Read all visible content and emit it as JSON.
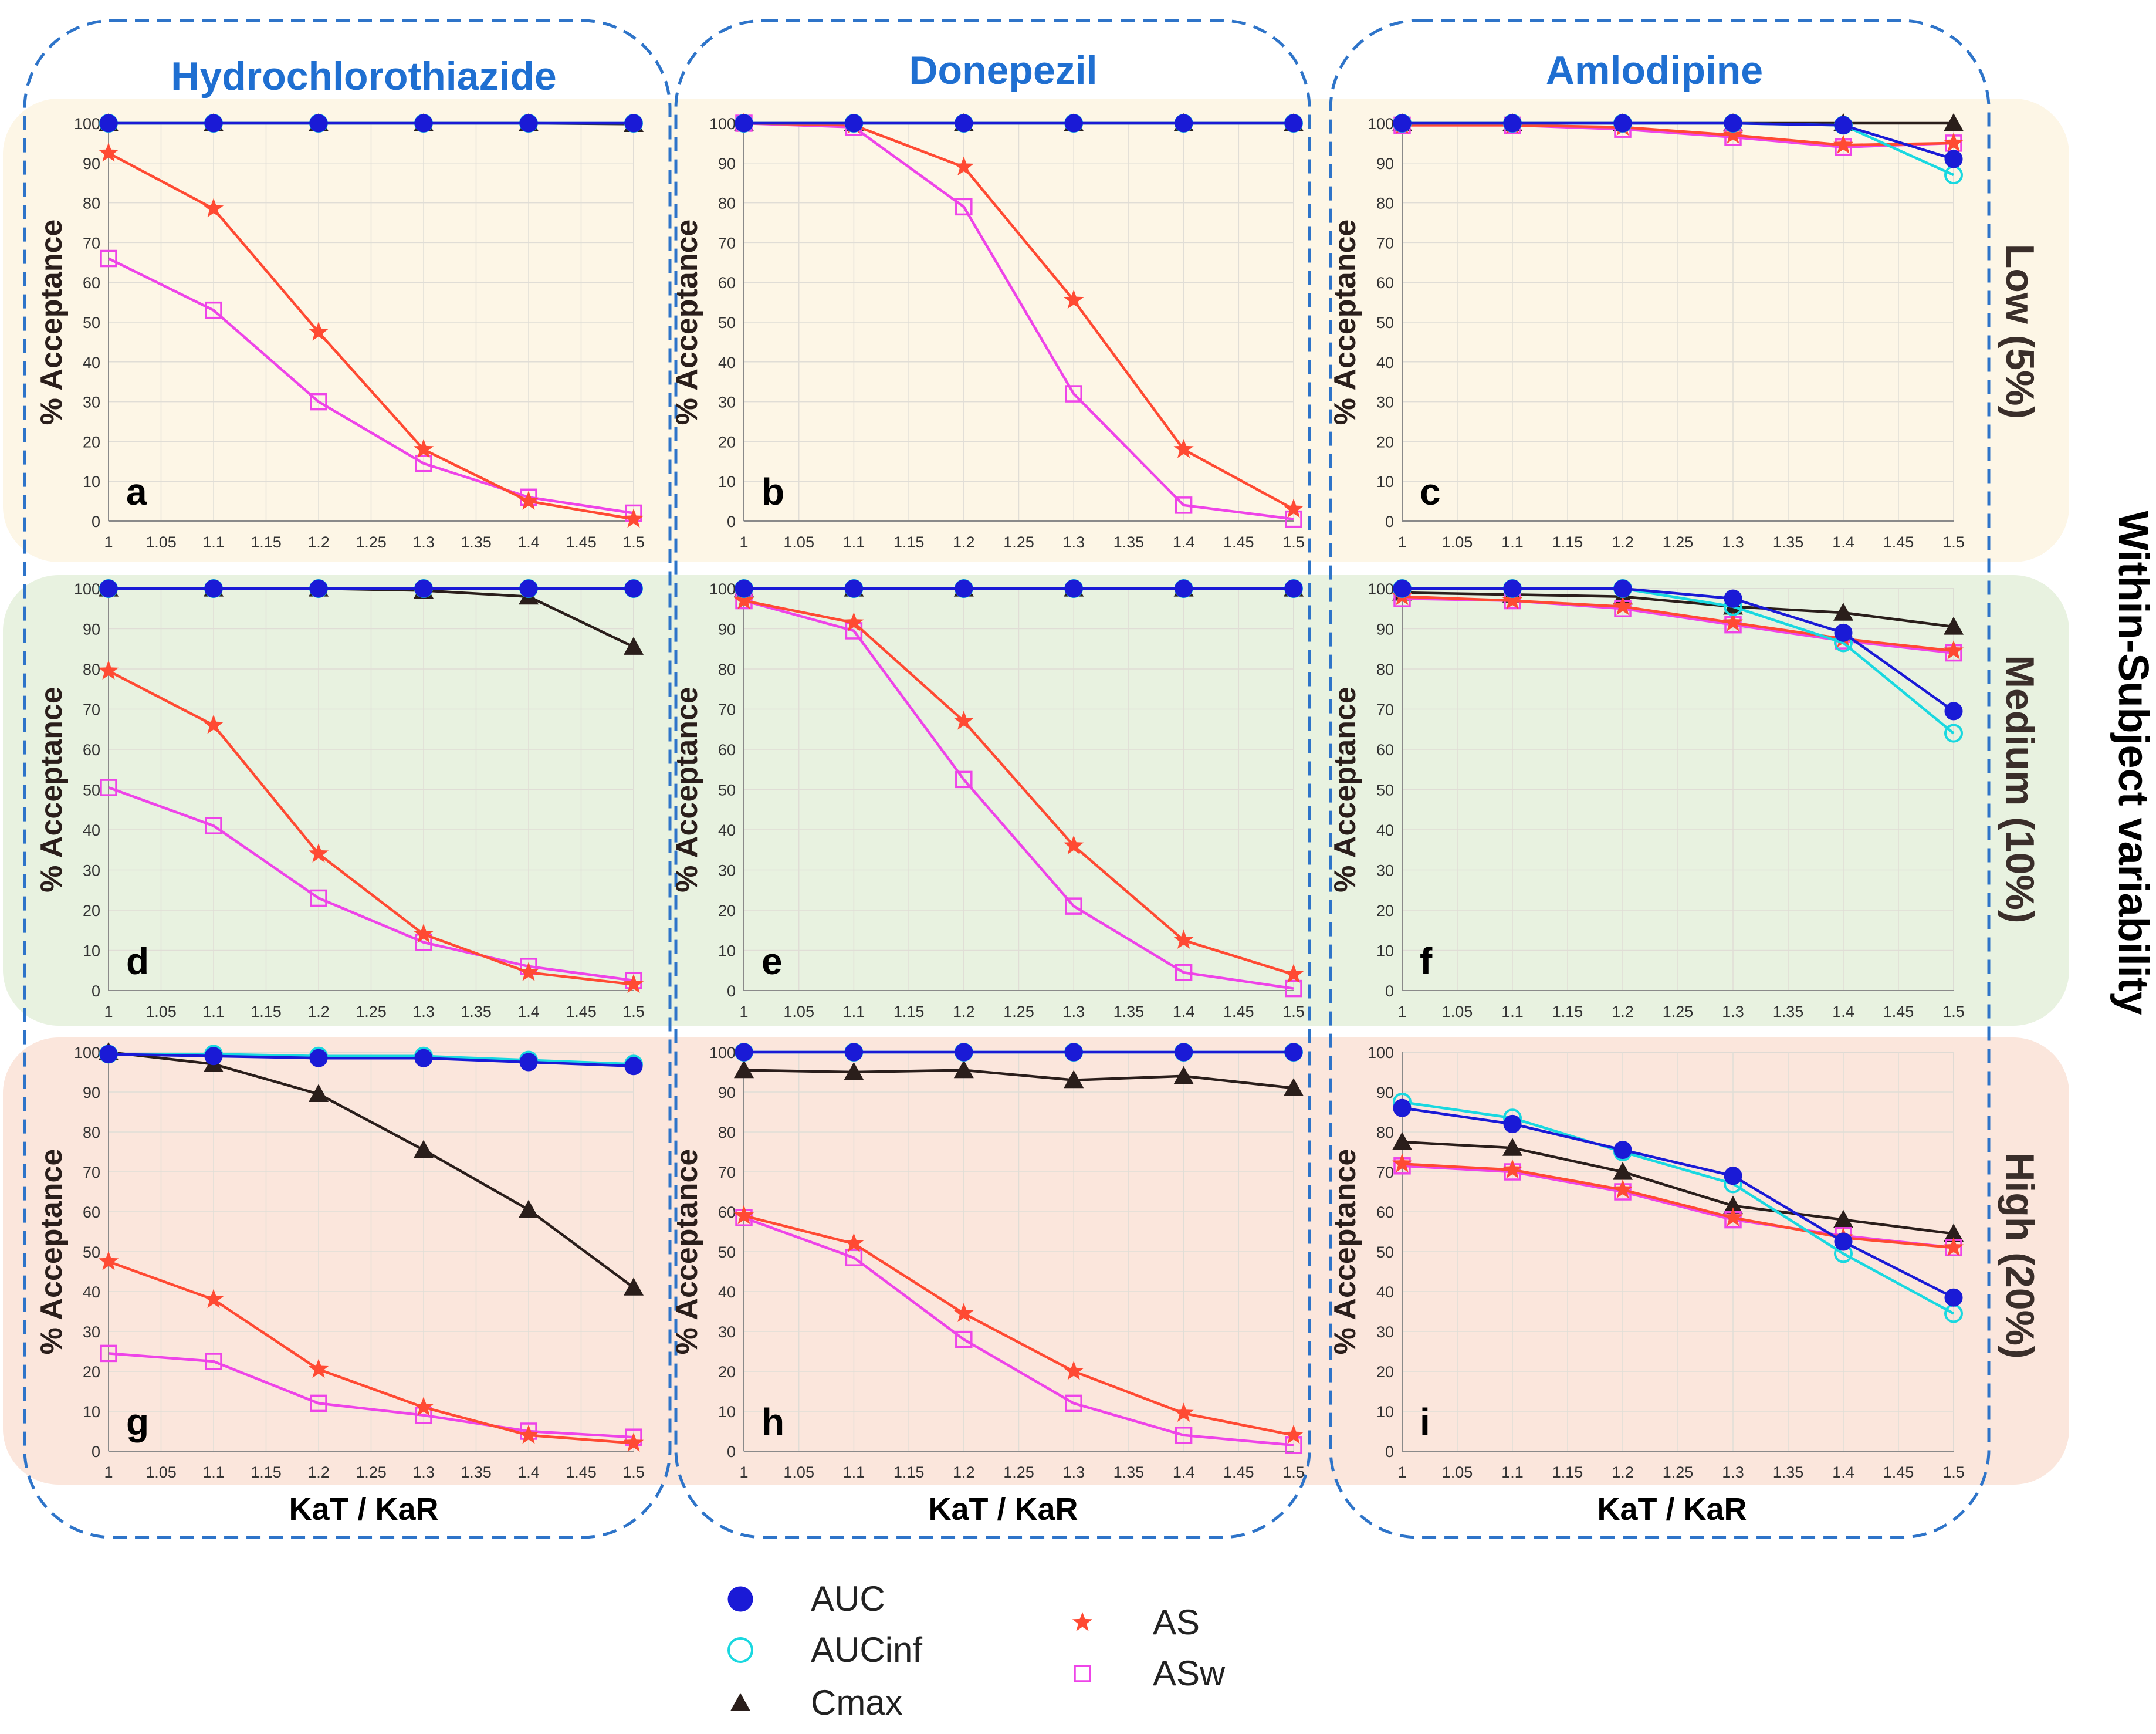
{
  "figure": {
    "columns": [
      "Hydrochlorothiazide",
      "Donepezil",
      "Amlodipine"
    ],
    "rows": [
      "Low (5%)",
      "Medium (10%)",
      "High (20%)"
    ],
    "side_title": "Within-Subject variability",
    "ylabel": "% Acceptance",
    "xlabel": "KaT / KaR",
    "row_colors": [
      "#fdf6e6",
      "#e8f2e0",
      "#fbe6dc"
    ],
    "column_title_color": "#1f6fd1",
    "frame_color": "#2e74c9"
  },
  "legend": {
    "items": [
      {
        "key": "AUC",
        "label": "AUC",
        "color": "#1a1ad6",
        "marker": "filled-circle"
      },
      {
        "key": "AUCinf",
        "label": "AUCinf",
        "color": "#19d8e0",
        "marker": "open-circle"
      },
      {
        "key": "Cmax",
        "label": "Cmax",
        "color": "#2a1e1b",
        "marker": "filled-triangle"
      },
      {
        "key": "AS",
        "label": "AS",
        "color": "#ff4a33",
        "marker": "filled-star"
      },
      {
        "key": "ASw",
        "label": "ASw",
        "color": "#ee44e8",
        "marker": "open-square"
      }
    ]
  },
  "chart_data": [
    {
      "panel": "a",
      "type": "line",
      "drug": "Hydrochlorothiazide",
      "variability": "Low (5%)",
      "x": [
        1,
        1.1,
        1.2,
        1.3,
        1.4,
        1.5
      ],
      "xticks": [
        "1",
        "1.05",
        "1.1",
        "1.15",
        "1.2",
        "1.25",
        "1.3",
        "1.35",
        "1.4",
        "1.45",
        "1.5"
      ],
      "yticks": [
        "0",
        "10",
        "20",
        "30",
        "40",
        "50",
        "60",
        "70",
        "80",
        "90",
        "100"
      ],
      "ylim": [
        0,
        100
      ],
      "xlim": [
        1,
        1.5
      ],
      "grid": true,
      "series": [
        {
          "name": "AUC",
          "values": [
            100,
            100,
            100,
            100,
            100,
            100
          ]
        },
        {
          "name": "AUCinf",
          "values": [
            100,
            100,
            100,
            100,
            100,
            100
          ]
        },
        {
          "name": "Cmax",
          "values": [
            100,
            100,
            100,
            100,
            100,
            99.8
          ]
        },
        {
          "name": "AS",
          "values": [
            92.5,
            78.5,
            47.5,
            18,
            5,
            0.5
          ]
        },
        {
          "name": "ASw",
          "values": [
            66,
            53,
            30,
            14.5,
            6,
            2
          ]
        }
      ]
    },
    {
      "panel": "b",
      "type": "line",
      "drug": "Donepezil",
      "variability": "Low (5%)",
      "x": [
        1,
        1.1,
        1.2,
        1.3,
        1.4,
        1.5
      ],
      "xticks": [
        "1",
        "1.05",
        "1.1",
        "1.15",
        "1.2",
        "1.25",
        "1.3",
        "1.35",
        "1.4",
        "1.45",
        "1.5"
      ],
      "yticks": [
        "0",
        "10",
        "20",
        "30",
        "40",
        "50",
        "60",
        "70",
        "80",
        "90",
        "100"
      ],
      "ylim": [
        0,
        100
      ],
      "xlim": [
        1,
        1.5
      ],
      "grid": true,
      "series": [
        {
          "name": "AUC",
          "values": [
            100,
            100,
            100,
            100,
            100,
            100
          ]
        },
        {
          "name": "AUCinf",
          "values": [
            100,
            100,
            100,
            100,
            100,
            100
          ]
        },
        {
          "name": "Cmax",
          "values": [
            100,
            100,
            100,
            100,
            100,
            100
          ]
        },
        {
          "name": "AS",
          "values": [
            100,
            99.5,
            89,
            55.5,
            18,
            3
          ]
        },
        {
          "name": "ASw",
          "values": [
            100,
            99,
            79,
            32,
            4,
            0.5
          ]
        }
      ]
    },
    {
      "panel": "c",
      "type": "line",
      "drug": "Amlodipine",
      "variability": "Low (5%)",
      "x": [
        1,
        1.1,
        1.2,
        1.3,
        1.4,
        1.5
      ],
      "xticks": [
        "1",
        "1.05",
        "1.1",
        "1.15",
        "1.2",
        "1.25",
        "1.3",
        "1.35",
        "1.4",
        "1.45",
        "1.5"
      ],
      "yticks": [
        "0",
        "10",
        "20",
        "30",
        "40",
        "50",
        "60",
        "70",
        "80",
        "90",
        "100"
      ],
      "ylim": [
        0,
        100
      ],
      "xlim": [
        1,
        1.5
      ],
      "grid": true,
      "series": [
        {
          "name": "AUC",
          "values": [
            100,
            100,
            100,
            100,
            99.5,
            91
          ]
        },
        {
          "name": "AUCinf",
          "values": [
            100,
            100,
            100,
            100,
            99.5,
            87
          ]
        },
        {
          "name": "Cmax",
          "values": [
            100,
            100,
            100,
            100,
            100,
            100
          ]
        },
        {
          "name": "AS",
          "values": [
            99.5,
            99.5,
            99,
            97,
            94.5,
            95
          ]
        },
        {
          "name": "ASw",
          "values": [
            99.5,
            99.5,
            98.5,
            96.5,
            94,
            95
          ]
        }
      ]
    },
    {
      "panel": "d",
      "type": "line",
      "drug": "Hydrochlorothiazide",
      "variability": "Medium (10%)",
      "x": [
        1,
        1.1,
        1.2,
        1.3,
        1.4,
        1.5
      ],
      "xticks": [
        "1",
        "1.05",
        "1.1",
        "1.15",
        "1.2",
        "1.25",
        "1.3",
        "1.35",
        "1.4",
        "1.45",
        "1.5"
      ],
      "yticks": [
        "0",
        "10",
        "20",
        "30",
        "40",
        "50",
        "60",
        "70",
        "80",
        "90",
        "100"
      ],
      "ylim": [
        0,
        100
      ],
      "xlim": [
        1,
        1.5
      ],
      "grid": true,
      "series": [
        {
          "name": "AUC",
          "values": [
            100,
            100,
            100,
            100,
            100,
            100
          ]
        },
        {
          "name": "AUCinf",
          "values": [
            100,
            100,
            100,
            100,
            100,
            100
          ]
        },
        {
          "name": "Cmax",
          "values": [
            100,
            100,
            100,
            99.5,
            98,
            85.5
          ]
        },
        {
          "name": "AS",
          "values": [
            79.5,
            66,
            34,
            14,
            4.5,
            1.5
          ]
        },
        {
          "name": "ASw",
          "values": [
            50.5,
            41,
            23,
            12,
            6,
            2.5
          ]
        }
      ]
    },
    {
      "panel": "e",
      "type": "line",
      "drug": "Donepezil",
      "variability": "Medium (10%)",
      "x": [
        1,
        1.1,
        1.2,
        1.3,
        1.4,
        1.5
      ],
      "xticks": [
        "1",
        "1.05",
        "1.1",
        "1.15",
        "1.2",
        "1.25",
        "1.3",
        "1.35",
        "1.4",
        "1.45",
        "1.5"
      ],
      "yticks": [
        "0",
        "10",
        "20",
        "30",
        "40",
        "50",
        "60",
        "70",
        "80",
        "90",
        "100"
      ],
      "ylim": [
        0,
        100
      ],
      "xlim": [
        1,
        1.5
      ],
      "grid": true,
      "series": [
        {
          "name": "AUC",
          "values": [
            100,
            100,
            100,
            100,
            100,
            100
          ]
        },
        {
          "name": "AUCinf",
          "values": [
            100,
            100,
            100,
            100,
            100,
            100
          ]
        },
        {
          "name": "Cmax",
          "values": [
            100,
            100,
            100,
            100,
            100,
            100
          ]
        },
        {
          "name": "AS",
          "values": [
            97,
            91.5,
            67,
            36,
            12.5,
            4
          ]
        },
        {
          "name": "ASw",
          "values": [
            97,
            89.5,
            52.5,
            21,
            4.5,
            0.5
          ]
        }
      ]
    },
    {
      "panel": "f",
      "type": "line",
      "drug": "Amlodipine",
      "variability": "Medium (10%)",
      "x": [
        1,
        1.1,
        1.2,
        1.3,
        1.4,
        1.5
      ],
      "xticks": [
        "1",
        "1.05",
        "1.1",
        "1.15",
        "1.2",
        "1.25",
        "1.3",
        "1.35",
        "1.4",
        "1.45",
        "1.5"
      ],
      "yticks": [
        "0",
        "10",
        "20",
        "30",
        "40",
        "50",
        "60",
        "70",
        "80",
        "90",
        "100"
      ],
      "ylim": [
        0,
        100
      ],
      "xlim": [
        1,
        1.5
      ],
      "grid": true,
      "series": [
        {
          "name": "AUC",
          "values": [
            100,
            100,
            100,
            97.5,
            89,
            69.5
          ]
        },
        {
          "name": "AUCinf",
          "values": [
            100,
            100,
            100,
            95.5,
            86.5,
            64
          ]
        },
        {
          "name": "Cmax",
          "values": [
            99,
            98.5,
            98,
            95.5,
            94,
            90.5
          ]
        },
        {
          "name": "AS",
          "values": [
            98,
            97,
            95.5,
            91.5,
            87.5,
            84.5
          ]
        },
        {
          "name": "ASw",
          "values": [
            97.5,
            97,
            95,
            91,
            87,
            84
          ]
        }
      ]
    },
    {
      "panel": "g",
      "type": "line",
      "drug": "Hydrochlorothiazide",
      "variability": "High (20%)",
      "x": [
        1,
        1.1,
        1.2,
        1.3,
        1.4,
        1.5
      ],
      "xticks": [
        "1",
        "1.05",
        "1.1",
        "1.15",
        "1.2",
        "1.25",
        "1.3",
        "1.35",
        "1.4",
        "1.45",
        "1.5"
      ],
      "yticks": [
        "0",
        "10",
        "20",
        "30",
        "40",
        "50",
        "60",
        "70",
        "80",
        "90",
        "100"
      ],
      "ylim": [
        0,
        100
      ],
      "xlim": [
        1,
        1.5
      ],
      "grid": true,
      "series": [
        {
          "name": "AUC",
          "values": [
            99.5,
            99,
            98.5,
            98.5,
            97.5,
            96.5
          ]
        },
        {
          "name": "AUCinf",
          "values": [
            99.5,
            99.5,
            99,
            99,
            98,
            97
          ]
        },
        {
          "name": "Cmax",
          "values": [
            100,
            97,
            89.5,
            75.5,
            60.5,
            41
          ]
        },
        {
          "name": "AS",
          "values": [
            47.5,
            38,
            20.5,
            11,
            4,
            2
          ]
        },
        {
          "name": "ASw",
          "values": [
            24.5,
            22.5,
            12,
            9,
            5,
            3.5
          ]
        }
      ]
    },
    {
      "panel": "h",
      "type": "line",
      "drug": "Donepezil",
      "variability": "High (20%)",
      "x": [
        1,
        1.1,
        1.2,
        1.3,
        1.4,
        1.5
      ],
      "xticks": [
        "1",
        "1.05",
        "1.1",
        "1.15",
        "1.2",
        "1.25",
        "1.3",
        "1.35",
        "1.4",
        "1.45",
        "1.5"
      ],
      "yticks": [
        "0",
        "10",
        "20",
        "30",
        "40",
        "50",
        "60",
        "70",
        "80",
        "90",
        "100"
      ],
      "ylim": [
        0,
        100
      ],
      "xlim": [
        1,
        1.5
      ],
      "grid": true,
      "series": [
        {
          "name": "AUC",
          "values": [
            100,
            100,
            100,
            100,
            100,
            100
          ]
        },
        {
          "name": "AUCinf",
          "values": [
            100,
            100,
            100,
            100,
            100,
            100
          ]
        },
        {
          "name": "Cmax",
          "values": [
            95.5,
            95,
            95.5,
            93,
            94,
            91
          ]
        },
        {
          "name": "AS",
          "values": [
            59,
            52,
            34.5,
            20,
            9.5,
            4
          ]
        },
        {
          "name": "ASw",
          "values": [
            58.5,
            48.5,
            28,
            12,
            4,
            1.5
          ]
        }
      ]
    },
    {
      "panel": "i",
      "type": "line",
      "drug": "Amlodipine",
      "variability": "High (20%)",
      "x": [
        1,
        1.1,
        1.2,
        1.3,
        1.4,
        1.5
      ],
      "xticks": [
        "1",
        "1.05",
        "1.1",
        "1.15",
        "1.2",
        "1.25",
        "1.3",
        "1.35",
        "1.4",
        "1.45",
        "1.5"
      ],
      "yticks": [
        "0",
        "10",
        "20",
        "30",
        "40",
        "50",
        "60",
        "70",
        "80",
        "90",
        "100"
      ],
      "ylim": [
        0,
        100
      ],
      "xlim": [
        1,
        1.5
      ],
      "grid": true,
      "series": [
        {
          "name": "AUC",
          "values": [
            86,
            82,
            75.5,
            69,
            52.5,
            38.5
          ]
        },
        {
          "name": "AUCinf",
          "values": [
            87.5,
            83.5,
            75,
            67,
            49.5,
            34.5
          ]
        },
        {
          "name": "Cmax",
          "values": [
            77.5,
            76,
            70,
            61.5,
            58,
            54.5
          ]
        },
        {
          "name": "AS",
          "values": [
            72,
            70.5,
            65.5,
            58.5,
            53.5,
            51
          ]
        },
        {
          "name": "ASw",
          "values": [
            71.5,
            70,
            65,
            58,
            54,
            51
          ]
        }
      ]
    }
  ]
}
